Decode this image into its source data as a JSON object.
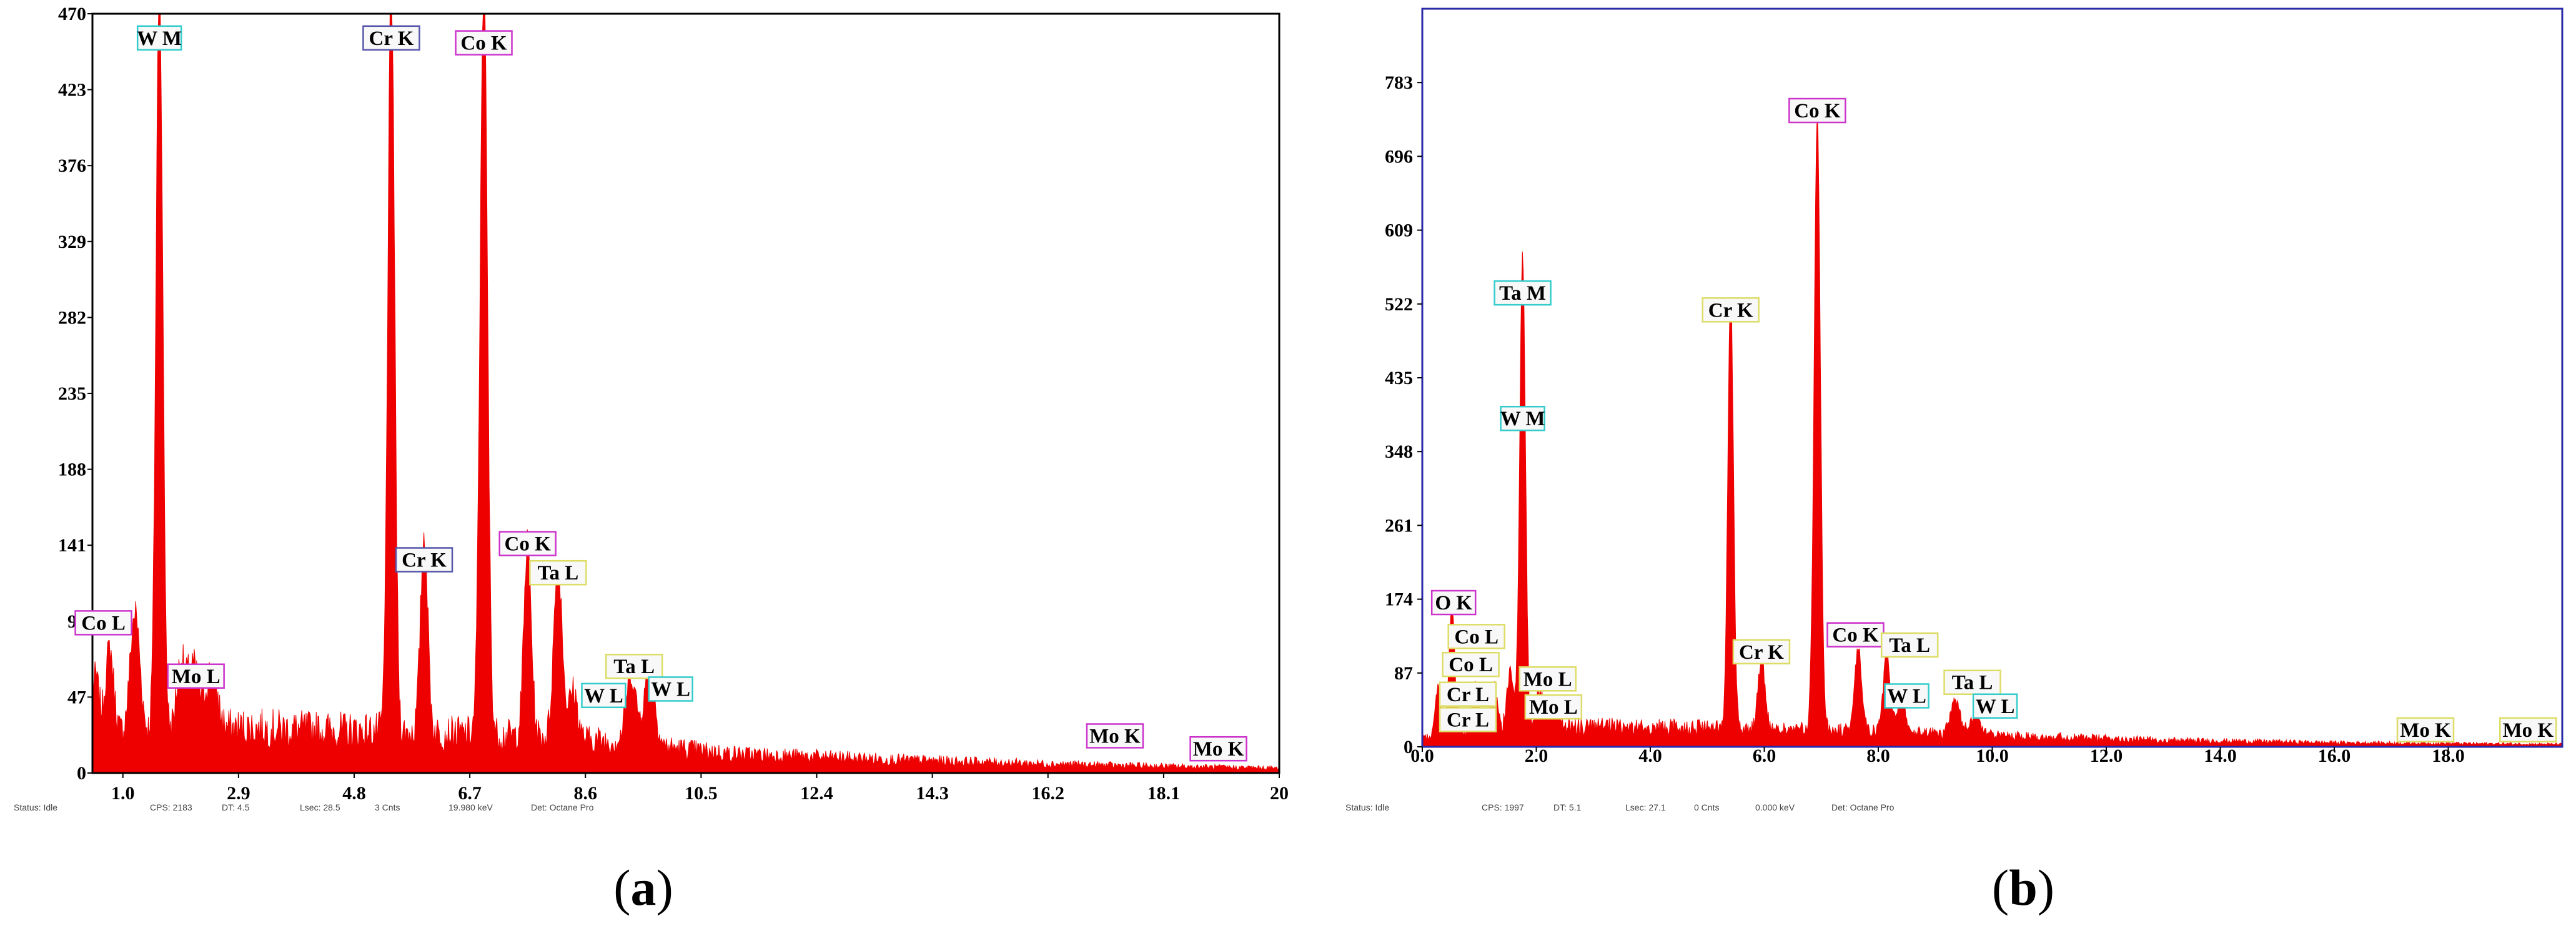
{
  "colors": {
    "spectrum": "#ee0000",
    "frame_a": "#000000",
    "frame_b": "#2a2aa8",
    "label_magenta": "#cc33cc",
    "label_blue": "#5555aa",
    "label_cyan": "#33cccc",
    "label_yellow": "#dddd66",
    "label_fill": "#f8f8f8"
  },
  "chart_data": [
    {
      "type": "area",
      "panel": "a",
      "xlim": [
        0.5,
        20
      ],
      "ylim": [
        0,
        470
      ],
      "x_ticks": [
        "1.0",
        "2.9",
        "4.8",
        "6.7",
        "8.6",
        "10.5",
        "12.4",
        "14.3",
        "16.2",
        "18.1",
        "20"
      ],
      "x_tick_values": [
        1.0,
        2.9,
        4.8,
        6.7,
        8.6,
        10.5,
        12.4,
        14.3,
        16.2,
        18.1,
        20
      ],
      "y_ticks": [
        "0",
        "47",
        "94",
        "141",
        "188",
        "235",
        "282",
        "329",
        "376",
        "423",
        "470"
      ],
      "y_tick_values": [
        0,
        47,
        94,
        141,
        188,
        235,
        282,
        329,
        376,
        423,
        470
      ],
      "peaks": [
        {
          "x": 0.55,
          "y": 40,
          "w": 0.06
        },
        {
          "x": 0.78,
          "y": 55,
          "w": 0.07
        },
        {
          "x": 1.2,
          "y": 75,
          "w": 0.08
        },
        {
          "x": 1.6,
          "y": 470,
          "w": 0.055
        },
        {
          "x": 1.95,
          "y": 40,
          "w": 0.07
        },
        {
          "x": 2.15,
          "y": 40,
          "w": 0.09
        },
        {
          "x": 2.45,
          "y": 35,
          "w": 0.1
        },
        {
          "x": 5.41,
          "y": 470,
          "w": 0.055
        },
        {
          "x": 5.95,
          "y": 122,
          "w": 0.06
        },
        {
          "x": 6.93,
          "y": 470,
          "w": 0.06
        },
        {
          "x": 7.65,
          "y": 120,
          "w": 0.06
        },
        {
          "x": 8.15,
          "y": 108,
          "w": 0.07
        },
        {
          "x": 8.4,
          "y": 30,
          "w": 0.07
        },
        {
          "x": 9.35,
          "y": 42,
          "w": 0.08
        },
        {
          "x": 9.65,
          "y": 45,
          "w": 0.09
        }
      ],
      "background": [
        {
          "x": 0.5,
          "y": 20
        },
        {
          "x": 1.0,
          "y": 24
        },
        {
          "x": 3.0,
          "y": 28
        },
        {
          "x": 5.0,
          "y": 26
        },
        {
          "x": 7.0,
          "y": 24
        },
        {
          "x": 9.0,
          "y": 20
        },
        {
          "x": 11.0,
          "y": 12
        },
        {
          "x": 14.0,
          "y": 8
        },
        {
          "x": 17.0,
          "y": 5
        },
        {
          "x": 20.0,
          "y": 3
        }
      ],
      "annotations": [
        {
          "text": "W M",
          "x": 1.6,
          "y": 455,
          "style": "cyan"
        },
        {
          "text": "Cr K",
          "x": 5.41,
          "y": 455,
          "style": "blue"
        },
        {
          "text": "Co K",
          "x": 6.93,
          "y": 452,
          "style": "magenta"
        },
        {
          "text": "Cr K",
          "x": 5.95,
          "y": 132,
          "style": "blue"
        },
        {
          "text": "Co K",
          "x": 7.65,
          "y": 142,
          "style": "magenta"
        },
        {
          "text": "Ta L",
          "x": 8.15,
          "y": 124,
          "style": "yellow"
        },
        {
          "text": "Co L",
          "x": 0.68,
          "y": 93,
          "style": "magenta"
        },
        {
          "text": "Mo L",
          "x": 2.2,
          "y": 60,
          "style": "magenta"
        },
        {
          "text": "Ta L",
          "x": 9.4,
          "y": 66,
          "style": "yellow"
        },
        {
          "text": "W L",
          "x": 8.9,
          "y": 48,
          "style": "cyan"
        },
        {
          "text": "W L",
          "x": 10.0,
          "y": 52,
          "style": "cyan"
        },
        {
          "text": "Mo K",
          "x": 17.3,
          "y": 23,
          "style": "magenta"
        },
        {
          "text": "Mo K",
          "x": 19.0,
          "y": 15,
          "style": "magenta"
        }
      ]
    },
    {
      "type": "area",
      "panel": "b",
      "xlim": [
        0,
        20
      ],
      "ylim": [
        0,
        870
      ],
      "x_ticks": [
        "0.0",
        "2.0",
        "4.0",
        "6.0",
        "8.0",
        "10.0",
        "12.0",
        "14.0",
        "16.0",
        "18.0"
      ],
      "x_tick_values": [
        0,
        2,
        4,
        6,
        8,
        10,
        12,
        14,
        16,
        18
      ],
      "y_ticks": [
        "0",
        "87",
        "174",
        "261",
        "348",
        "435",
        "522",
        "609",
        "696",
        "783"
      ],
      "y_tick_values": [
        0,
        87,
        174,
        261,
        348,
        435,
        522,
        609,
        696,
        783
      ],
      "peaks": [
        {
          "x": 0.28,
          "y": 60,
          "w": 0.05
        },
        {
          "x": 0.52,
          "y": 150,
          "w": 0.05
        },
        {
          "x": 0.93,
          "y": 58,
          "w": 0.06
        },
        {
          "x": 1.25,
          "y": 52,
          "w": 0.06
        },
        {
          "x": 1.55,
          "y": 70,
          "w": 0.06
        },
        {
          "x": 1.76,
          "y": 560,
          "w": 0.05
        },
        {
          "x": 2.05,
          "y": 45,
          "w": 0.07
        },
        {
          "x": 2.3,
          "y": 35,
          "w": 0.08
        },
        {
          "x": 5.41,
          "y": 510,
          "w": 0.05
        },
        {
          "x": 5.95,
          "y": 85,
          "w": 0.06
        },
        {
          "x": 6.93,
          "y": 720,
          "w": 0.055
        },
        {
          "x": 7.65,
          "y": 100,
          "w": 0.06
        },
        {
          "x": 8.15,
          "y": 90,
          "w": 0.06
        },
        {
          "x": 8.4,
          "y": 40,
          "w": 0.07
        },
        {
          "x": 9.35,
          "y": 40,
          "w": 0.08
        },
        {
          "x": 9.7,
          "y": 25,
          "w": 0.09
        }
      ],
      "background": [
        {
          "x": 0.0,
          "y": 10
        },
        {
          "x": 1.0,
          "y": 20
        },
        {
          "x": 3.0,
          "y": 24
        },
        {
          "x": 5.0,
          "y": 22
        },
        {
          "x": 7.0,
          "y": 20
        },
        {
          "x": 10.0,
          "y": 14
        },
        {
          "x": 13.0,
          "y": 8
        },
        {
          "x": 16.0,
          "y": 5
        },
        {
          "x": 20.0,
          "y": 3
        }
      ],
      "annotations": [
        {
          "text": "Co K",
          "x": 6.93,
          "y": 750,
          "style": "magenta"
        },
        {
          "text": "Ta M",
          "x": 1.76,
          "y": 535,
          "style": "cyan"
        },
        {
          "text": "Cr K",
          "x": 5.41,
          "y": 515,
          "style": "yellow"
        },
        {
          "text": "W M",
          "x": 1.76,
          "y": 387,
          "style": "cyan"
        },
        {
          "text": "O K",
          "x": 0.55,
          "y": 170,
          "style": "magenta"
        },
        {
          "text": "Co L",
          "x": 0.95,
          "y": 130,
          "style": "yellow"
        },
        {
          "text": "Co L",
          "x": 0.85,
          "y": 97,
          "style": "yellow"
        },
        {
          "text": "Cr L",
          "x": 0.8,
          "y": 62,
          "style": "yellow"
        },
        {
          "text": "Cr L",
          "x": 0.8,
          "y": 32,
          "style": "yellow"
        },
        {
          "text": "Mo L",
          "x": 2.2,
          "y": 80,
          "style": "yellow"
        },
        {
          "text": "Mo L",
          "x": 2.3,
          "y": 47,
          "style": "yellow"
        },
        {
          "text": "Cr K",
          "x": 5.95,
          "y": 112,
          "style": "yellow"
        },
        {
          "text": "Co K",
          "x": 7.6,
          "y": 132,
          "style": "magenta"
        },
        {
          "text": "Ta L",
          "x": 8.55,
          "y": 120,
          "style": "yellow"
        },
        {
          "text": "W L",
          "x": 8.5,
          "y": 60,
          "style": "cyan"
        },
        {
          "text": "Ta L",
          "x": 9.65,
          "y": 76,
          "style": "yellow"
        },
        {
          "text": "W L",
          "x": 10.05,
          "y": 48,
          "style": "cyan"
        },
        {
          "text": "Mo K",
          "x": 17.6,
          "y": 20,
          "style": "yellow"
        },
        {
          "text": "Mo K",
          "x": 19.4,
          "y": 20,
          "style": "yellow"
        }
      ]
    }
  ],
  "status_a": {
    "status": "Status: Idle",
    "cps": "CPS: 2183",
    "dt": "DT: 4.5",
    "lsec": "Lsec: 28.5",
    "cnts": "3 Cnts",
    "kev": "19.980 keV",
    "det": "Det: Octane Pro"
  },
  "status_b": {
    "status": "Status: Idle",
    "cps": "CPS: 1997",
    "dt": "DT: 5.1",
    "lsec": "Lsec: 27.1",
    "cnts": "0 Cnts",
    "kev": "0.000 keV",
    "det": "Det: Octane Pro"
  },
  "captions": {
    "a": "a",
    "b": "b"
  }
}
